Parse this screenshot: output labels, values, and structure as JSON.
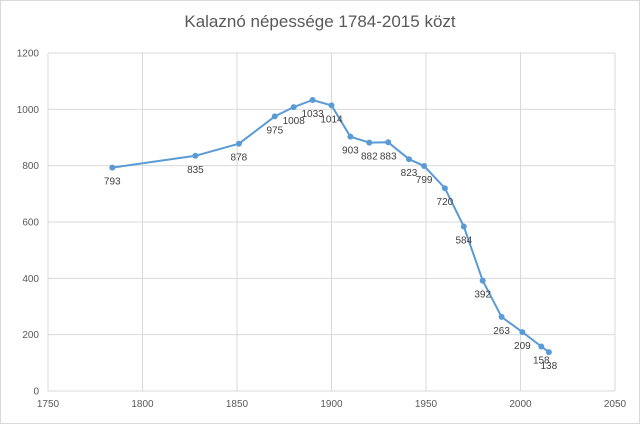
{
  "chart_data": {
    "type": "scatter",
    "title": "Kalaznó népessége 1784-2015 közt",
    "xlabel": "",
    "ylabel": "",
    "xlim": [
      1750,
      2050
    ],
    "ylim": [
      0,
      1200
    ],
    "xticks": [
      1750,
      1800,
      1850,
      1900,
      1950,
      2000,
      2050
    ],
    "yticks": [
      0,
      200,
      400,
      600,
      800,
      1000,
      1200
    ],
    "grid": "vertical and horizontal",
    "legend": "none",
    "line_color": "#5b9bd5",
    "series": [
      {
        "points": [
          {
            "x": 1784,
            "y": 793,
            "label": "793"
          },
          {
            "x": 1828,
            "y": 835,
            "label": "835"
          },
          {
            "x": 1851,
            "y": 878,
            "label": "878"
          },
          {
            "x": 1870,
            "y": 975,
            "label": "975"
          },
          {
            "x": 1880,
            "y": 1008,
            "label": "1008"
          },
          {
            "x": 1890,
            "y": 1033,
            "label": "1033"
          },
          {
            "x": 1900,
            "y": 1014,
            "label": "1014"
          },
          {
            "x": 1910,
            "y": 903,
            "label": "903"
          },
          {
            "x": 1920,
            "y": 882,
            "label": "882"
          },
          {
            "x": 1930,
            "y": 883,
            "label": "883"
          },
          {
            "x": 1941,
            "y": 823,
            "label": "823"
          },
          {
            "x": 1949,
            "y": 799,
            "label": "799"
          },
          {
            "x": 1960,
            "y": 720,
            "label": "720"
          },
          {
            "x": 1970,
            "y": 584,
            "label": "584"
          },
          {
            "x": 1980,
            "y": 392,
            "label": "392"
          },
          {
            "x": 1990,
            "y": 263,
            "label": "263"
          },
          {
            "x": 2001,
            "y": 209,
            "label": "209"
          },
          {
            "x": 2011,
            "y": 158,
            "label": "158"
          },
          {
            "x": 2015,
            "y": 138,
            "label": "138"
          }
        ]
      }
    ]
  }
}
